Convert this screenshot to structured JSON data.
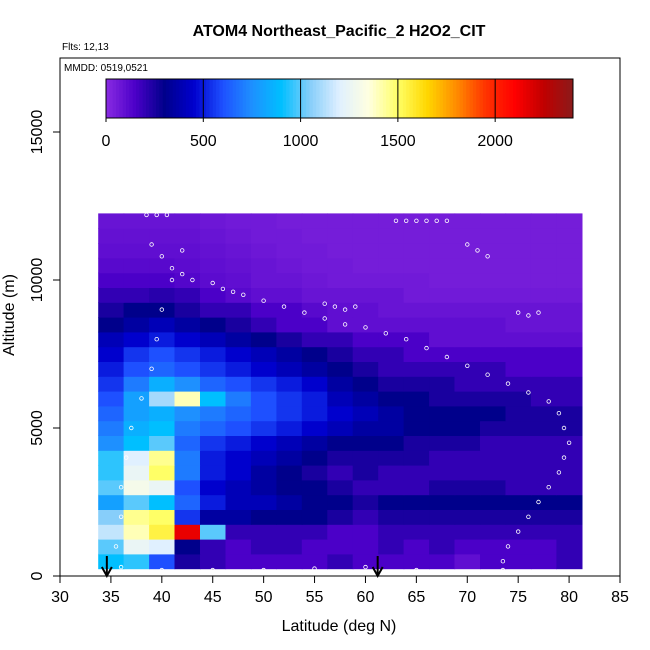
{
  "chart_data": {
    "type": "heatmap",
    "title": "ATOM4 Northeast_Pacific_2 H2O2_CIT",
    "annotations": [
      "Flts: 12,13",
      "MMDD: 0519,0521"
    ],
    "xlabel": "Latitude (deg N)",
    "ylabel": "Altitude (m)",
    "xlim": [
      30,
      85
    ],
    "ylim": [
      0,
      17500
    ],
    "x_ticks": [
      30,
      35,
      40,
      45,
      50,
      55,
      60,
      65,
      70,
      75,
      80,
      85
    ],
    "y_ticks": [
      0,
      5000,
      10000,
      15000
    ],
    "colorbar": {
      "ticks": [
        0,
        500,
        1000,
        1500,
        2000
      ],
      "range": [
        0,
        2400
      ],
      "colors": [
        "#8a2be2",
        "#4b00c8",
        "#00008b",
        "#0000cd",
        "#1e50ff",
        "#1e90ff",
        "#00bfff",
        "#87cefa",
        "#e0f0ff",
        "#ffffe0",
        "#ffff66",
        "#ffd700",
        "#ff8c00",
        "#ff3300",
        "#ff0000",
        "#c00000",
        "#8b1a1a"
      ],
      "placement": "top, inside plot"
    },
    "grid": false,
    "x": [
      35,
      37.5,
      40,
      42.5,
      45,
      47.5,
      50,
      52.5,
      55,
      57.5,
      60,
      62.5,
      65,
      67.5,
      70,
      72.5,
      75,
      77.5,
      80
    ],
    "y": [
      500,
      1000,
      1500,
      2000,
      2500,
      3000,
      3500,
      4000,
      4500,
      5000,
      5500,
      6000,
      6500,
      7000,
      7500,
      8000,
      8500,
      9000,
      9500,
      10000,
      10500,
      11000,
      11500,
      12000
    ],
    "values": [
      [
        900,
        950,
        600,
        250,
        200,
        150,
        150,
        150,
        150,
        200,
        150,
        150,
        150,
        150,
        100,
        150,
        150,
        150,
        200
      ],
      [
        1000,
        1250,
        1200,
        300,
        200,
        150,
        200,
        200,
        150,
        150,
        150,
        200,
        150,
        200,
        150,
        150,
        150,
        150,
        200
      ],
      [
        1150,
        1400,
        1550,
        2150,
        1000,
        200,
        200,
        200,
        200,
        150,
        150,
        200,
        200,
        200,
        200,
        200,
        200,
        200,
        200
      ],
      [
        1050,
        1450,
        1500,
        550,
        350,
        350,
        300,
        300,
        300,
        250,
        200,
        250,
        250,
        250,
        250,
        250,
        250,
        250,
        250
      ],
      [
        800,
        1000,
        900,
        650,
        500,
        400,
        400,
        350,
        300,
        300,
        250,
        300,
        300,
        300,
        300,
        300,
        300,
        300,
        300
      ],
      [
        1000,
        1300,
        1250,
        600,
        450,
        400,
        350,
        300,
        300,
        250,
        200,
        200,
        200,
        250,
        250,
        250,
        200,
        200,
        200
      ],
      [
        950,
        1250,
        1500,
        700,
        500,
        450,
        350,
        300,
        250,
        200,
        250,
        200,
        200,
        200,
        200,
        200,
        200,
        200,
        200
      ],
      [
        950,
        1200,
        1450,
        700,
        500,
        450,
        400,
        350,
        300,
        250,
        250,
        250,
        250,
        200,
        200,
        200,
        200,
        200,
        200
      ],
      [
        750,
        900,
        1000,
        650,
        550,
        500,
        450,
        400,
        350,
        300,
        300,
        300,
        250,
        250,
        250,
        200,
        200,
        200,
        200
      ],
      [
        700,
        850,
        900,
        700,
        650,
        600,
        550,
        500,
        450,
        400,
        350,
        350,
        300,
        300,
        300,
        250,
        250,
        250,
        250
      ],
      [
        650,
        800,
        850,
        750,
        700,
        650,
        600,
        550,
        500,
        450,
        400,
        350,
        300,
        300,
        300,
        300,
        250,
        250,
        250
      ],
      [
        600,
        800,
        1100,
        1400,
        900,
        700,
        600,
        550,
        500,
        400,
        350,
        300,
        300,
        250,
        250,
        250,
        250,
        200,
        200
      ],
      [
        550,
        700,
        850,
        750,
        650,
        600,
        550,
        500,
        450,
        350,
        300,
        250,
        250,
        250,
        200,
        200,
        200,
        200,
        200
      ],
      [
        500,
        600,
        650,
        600,
        550,
        500,
        450,
        400,
        350,
        300,
        250,
        200,
        200,
        200,
        200,
        200,
        150,
        150,
        150
      ],
      [
        450,
        550,
        600,
        550,
        500,
        450,
        400,
        350,
        300,
        250,
        200,
        200,
        150,
        150,
        150,
        150,
        150,
        150,
        150
      ],
      [
        400,
        450,
        500,
        450,
        400,
        350,
        300,
        250,
        200,
        200,
        150,
        150,
        150,
        100,
        100,
        100,
        100,
        100,
        100
      ],
      [
        300,
        350,
        400,
        350,
        300,
        250,
        200,
        150,
        150,
        100,
        100,
        100,
        100,
        100,
        100,
        100,
        80,
        80,
        80
      ],
      [
        250,
        300,
        300,
        250,
        200,
        200,
        150,
        150,
        120,
        100,
        100,
        80,
        80,
        80,
        80,
        80,
        80,
        80,
        80
      ],
      [
        200,
        200,
        220,
        200,
        150,
        120,
        100,
        100,
        80,
        80,
        80,
        80,
        60,
        60,
        60,
        60,
        60,
        60,
        60
      ],
      [
        150,
        150,
        150,
        130,
        110,
        100,
        80,
        80,
        70,
        60,
        60,
        60,
        60,
        50,
        50,
        50,
        50,
        50,
        50
      ],
      [
        120,
        120,
        120,
        110,
        100,
        90,
        80,
        70,
        60,
        60,
        50,
        50,
        50,
        50,
        50,
        50,
        50,
        50,
        50
      ],
      [
        100,
        100,
        100,
        100,
        90,
        80,
        70,
        60,
        60,
        50,
        50,
        50,
        50,
        50,
        50,
        50,
        50,
        50,
        50
      ],
      [
        90,
        90,
        90,
        90,
        80,
        70,
        60,
        60,
        50,
        50,
        50,
        50,
        50,
        50,
        50,
        50,
        50,
        50,
        50
      ],
      [
        80,
        80,
        80,
        80,
        70,
        60,
        60,
        50,
        50,
        50,
        50,
        50,
        50,
        50,
        50,
        50,
        50,
        50,
        50
      ]
    ],
    "flight_track_points": [
      [
        38.5,
        12200
      ],
      [
        39.5,
        12200
      ],
      [
        40.5,
        12200
      ],
      [
        39,
        11200
      ],
      [
        40,
        10800
      ],
      [
        41,
        10400
      ],
      [
        42,
        10200
      ],
      [
        43,
        10000
      ],
      [
        45,
        9900
      ],
      [
        46,
        9700
      ],
      [
        47,
        9600
      ],
      [
        48,
        9500
      ],
      [
        50,
        9300
      ],
      [
        52,
        9100
      ],
      [
        54,
        8900
      ],
      [
        56,
        8700
      ],
      [
        58,
        8500
      ],
      [
        60,
        8400
      ],
      [
        62,
        8200
      ],
      [
        64,
        8000
      ],
      [
        66,
        7700
      ],
      [
        68,
        7400
      ],
      [
        70,
        7100
      ],
      [
        72,
        6800
      ],
      [
        74,
        6500
      ],
      [
        76,
        6200
      ],
      [
        78,
        5900
      ],
      [
        79,
        5500
      ],
      [
        79.5,
        5000
      ],
      [
        80,
        4500
      ],
      [
        79.5,
        4000
      ],
      [
        79,
        3500
      ],
      [
        78,
        3000
      ],
      [
        77,
        2500
      ],
      [
        76,
        2000
      ],
      [
        75,
        1500
      ],
      [
        74,
        1000
      ],
      [
        73.5,
        500
      ],
      [
        73.5,
        200
      ],
      [
        65,
        200
      ],
      [
        60,
        300
      ],
      [
        55,
        250
      ],
      [
        50,
        200
      ],
      [
        45,
        200
      ],
      [
        40,
        200
      ],
      [
        36,
        300
      ],
      [
        35.5,
        1000
      ],
      [
        36,
        2000
      ],
      [
        36,
        3000
      ],
      [
        36.5,
        4000
      ],
      [
        37,
        5000
      ],
      [
        38,
        6000
      ],
      [
        39,
        7000
      ],
      [
        39.5,
        8000
      ],
      [
        40,
        9000
      ],
      [
        41,
        10000
      ],
      [
        42,
        11000
      ],
      [
        63,
        12000
      ],
      [
        64,
        12000
      ],
      [
        65,
        12000
      ],
      [
        66,
        12000
      ],
      [
        67,
        12000
      ],
      [
        68,
        12000
      ],
      [
        70,
        11200
      ],
      [
        71,
        11000
      ],
      [
        72,
        10800
      ],
      [
        56,
        9200
      ],
      [
        57,
        9100
      ],
      [
        58,
        9000
      ],
      [
        59,
        9100
      ],
      [
        75,
        8900
      ],
      [
        76,
        8800
      ],
      [
        77,
        8900
      ]
    ],
    "markers": [
      34.6,
      61.2
    ]
  }
}
